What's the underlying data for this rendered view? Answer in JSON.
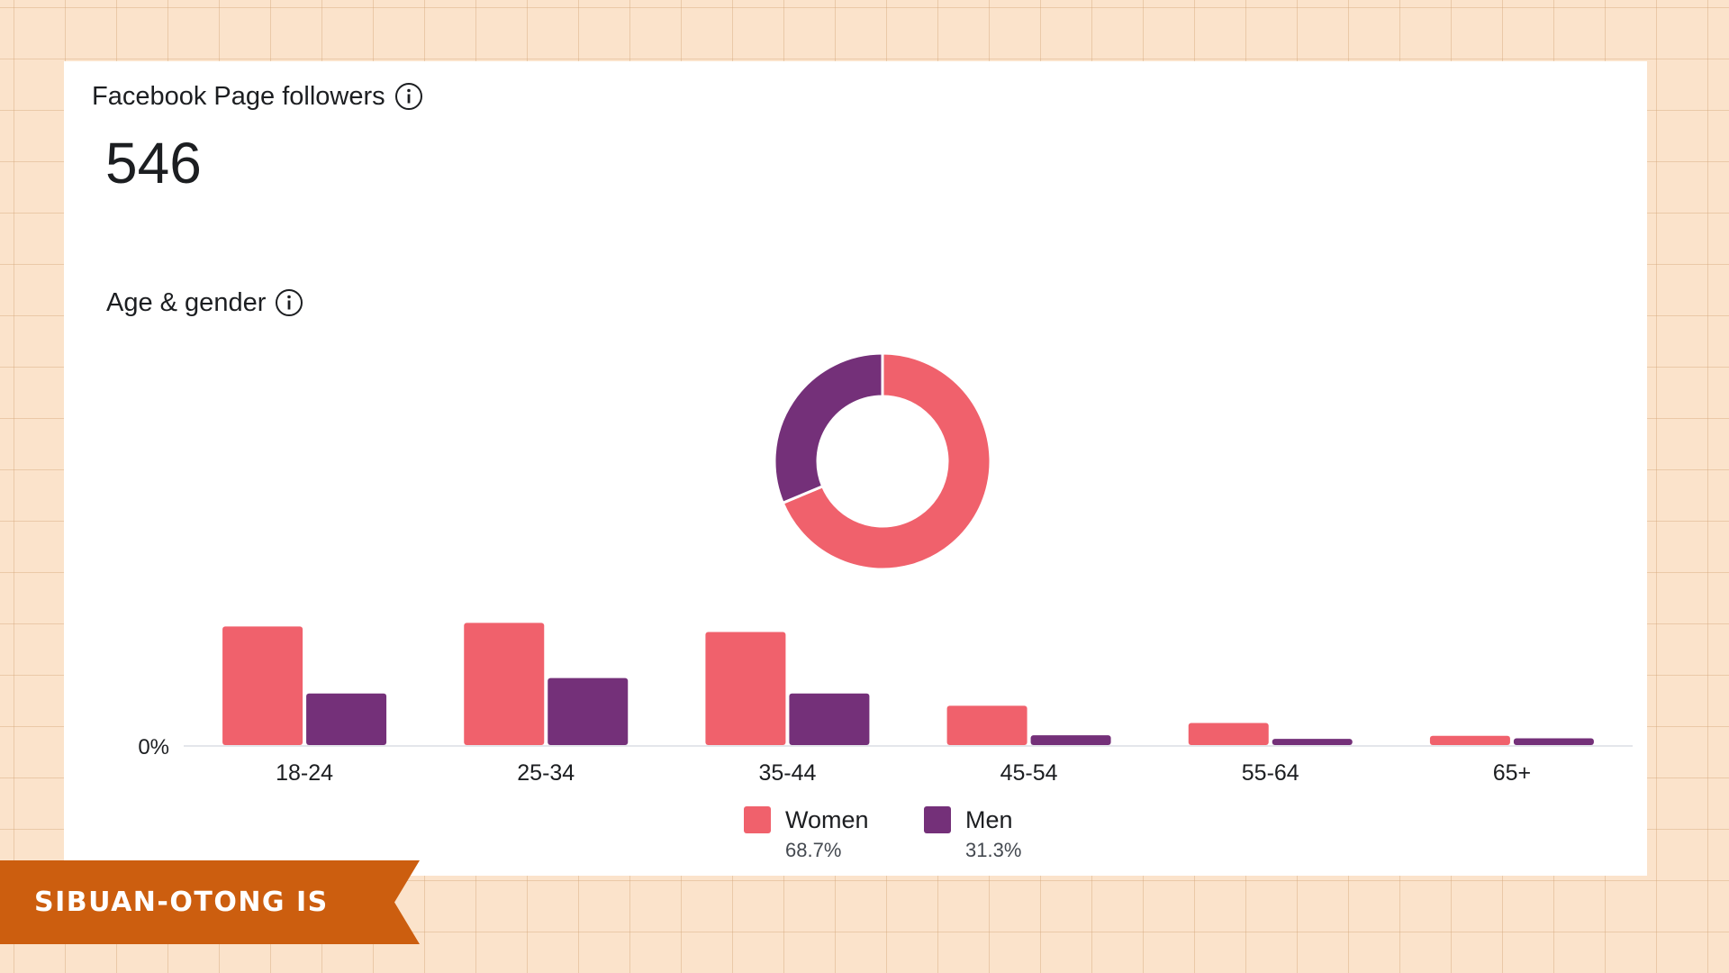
{
  "header": {
    "title": "Facebook Page followers",
    "follower_count": "546"
  },
  "section": {
    "title": "Age & gender"
  },
  "icons": {
    "info": "info-circle-icon"
  },
  "colors": {
    "women": "#f0616c",
    "men": "#743079",
    "baseline": "#e4e6eb",
    "banner": "#cc5e0f"
  },
  "chart_data": {
    "type": "bar",
    "categories": [
      "18-24",
      "25-34",
      "35-44",
      "45-54",
      "55-64",
      "65+"
    ],
    "series": [
      {
        "name": "Women",
        "values": [
          19.3,
          19.9,
          18.4,
          6.4,
          3.6,
          1.5
        ]
      },
      {
        "name": "Men",
        "values": [
          8.4,
          10.9,
          8.4,
          1.6,
          1.0,
          1.1
        ]
      }
    ],
    "ylabel": "",
    "y_tick_label": "0%",
    "ylim": [
      0,
      22
    ],
    "donut": {
      "type": "pie",
      "slices": [
        {
          "name": "Women",
          "value": 68.7
        },
        {
          "name": "Men",
          "value": 31.3
        }
      ]
    },
    "legend": [
      {
        "name": "Women",
        "percent": "68.7%"
      },
      {
        "name": "Men",
        "percent": "31.3%"
      }
    ]
  },
  "banner": {
    "text": "SIBUAN-OTONG IS"
  }
}
